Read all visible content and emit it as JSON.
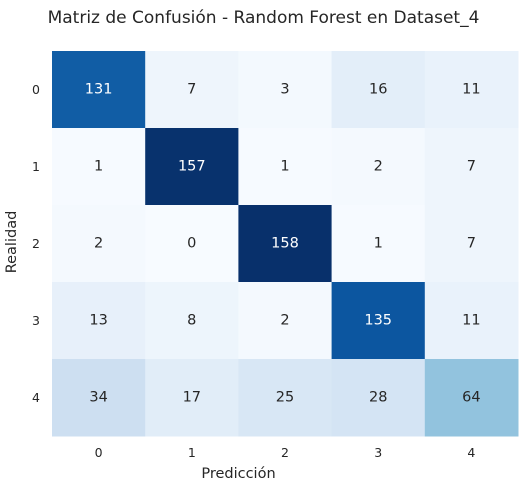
{
  "chart_data": {
    "type": "heatmap",
    "title": "Matriz de Confusión - Random Forest en Dataset_4",
    "xlabel": "Predicción",
    "ylabel": "Realidad",
    "x_ticks": [
      "0",
      "1",
      "2",
      "3",
      "4"
    ],
    "y_ticks": [
      "0",
      "1",
      "2",
      "3",
      "4"
    ],
    "matrix": [
      [
        131,
        7,
        3,
        16,
        11
      ],
      [
        1,
        157,
        1,
        2,
        7
      ],
      [
        2,
        0,
        158,
        1,
        7
      ],
      [
        13,
        8,
        2,
        135,
        11
      ],
      [
        34,
        17,
        25,
        28,
        64
      ]
    ],
    "colormap": "Blues",
    "vmin": 0,
    "vmax": 158,
    "colorbar": false
  }
}
